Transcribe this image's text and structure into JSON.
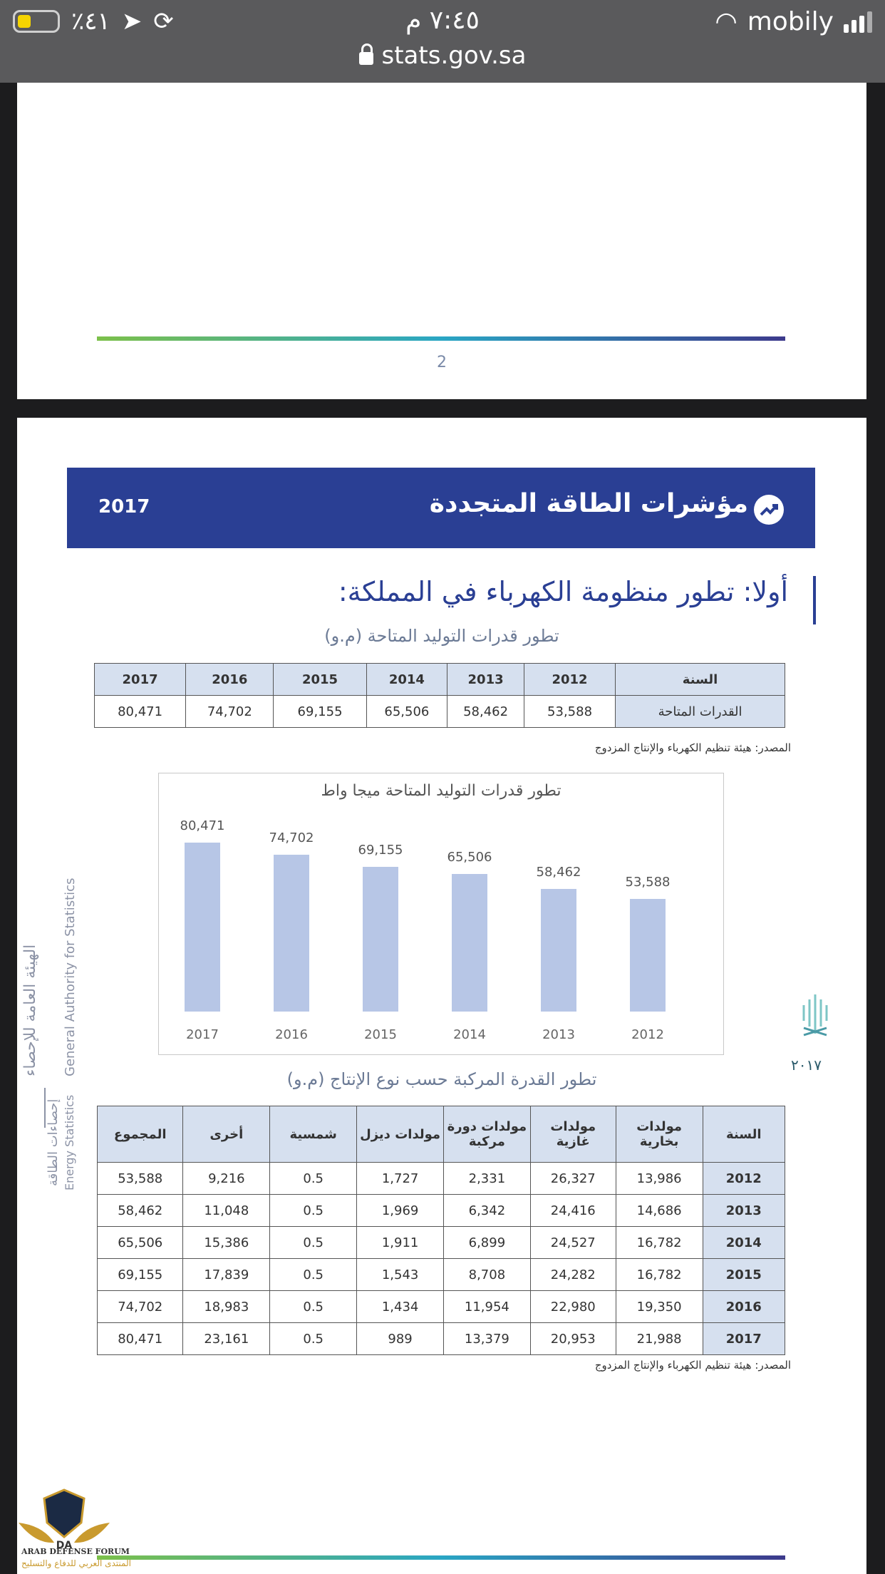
{
  "status_bar": {
    "battery_percent": "٪٤١",
    "time": "٧:٤٥ م",
    "carrier": "mobily",
    "url": "stats.gov.sa"
  },
  "page1": {
    "page_number": "2"
  },
  "banner": {
    "title": "مؤشرات الطاقة المتجددة",
    "year": "2017",
    "icon": "trend-up-icon"
  },
  "section_title": "أولا: تطور منظومة الكهرباء في المملكة:",
  "table1": {
    "caption": "تطور قدرات التوليد المتاحة (م.و)",
    "header_label": "السنة",
    "row_label": "القدرات المتاحة",
    "years": [
      "2017",
      "2016",
      "2015",
      "2014",
      "2013",
      "2012"
    ],
    "values": [
      "80,471",
      "74,702",
      "69,155",
      "65,506",
      "58,462",
      "53,588"
    ]
  },
  "source1": "المصدر: هيئة تنظيم الكهرباء والإنتاج المزدوج",
  "chart_data": {
    "type": "bar",
    "title": "تطور قدرات التوليد المتاحة ميجا واط",
    "categories": [
      "2017",
      "2016",
      "2015",
      "2014",
      "2013",
      "2012"
    ],
    "values": [
      80471,
      74702,
      69155,
      65506,
      58462,
      53588
    ],
    "value_labels": [
      "80,471",
      "74,702",
      "69,155",
      "65,506",
      "58,462",
      "53,588"
    ],
    "bar_color": "#b7c6e6"
  },
  "table2": {
    "caption": "تطور القدرة المركبة حسب نوع الإنتاج (م.و)",
    "headers": [
      "المجموع",
      "أخرى",
      "شمسية",
      "مولدات ديزل",
      "مولدات دورة مركبة",
      "مولدات غازية",
      "مولدات بخارية",
      "السنة"
    ],
    "rows": [
      [
        "53,588",
        "9,216",
        "0.5",
        "1,727",
        "2,331",
        "26,327",
        "13,986",
        "2012"
      ],
      [
        "58,462",
        "11,048",
        "0.5",
        "1,969",
        "6,342",
        "24,416",
        "14,686",
        "2013"
      ],
      [
        "65,506",
        "15,386",
        "0.5",
        "1,911",
        "6,899",
        "24,527",
        "16,782",
        "2014"
      ],
      [
        "69,155",
        "17,839",
        "0.5",
        "1,543",
        "8,708",
        "24,282",
        "16,782",
        "2015"
      ],
      [
        "74,702",
        "18,983",
        "0.5",
        "1,434",
        "11,954",
        "22,980",
        "19,350",
        "2016"
      ],
      [
        "80,471",
        "23,161",
        "0.5",
        "989",
        "13,379",
        "20,953",
        "21,988",
        "2017"
      ]
    ]
  },
  "source2": "المصدر: هيئة تنظيم الكهرباء والإنتاج المزدوج",
  "side": {
    "authority_ar": "الهيئة العامة للإحصاء",
    "authority_en": "General Authority for Statistics",
    "energy_ar": "إحصاءات الطاقة",
    "energy_en": "Energy Statistics",
    "vision_year": "٢٠١٧"
  },
  "forum": {
    "name_en": "ARAB DEFENSE FORUM",
    "name_ar": "المنتدى العربي للدفاع والتسليح"
  }
}
